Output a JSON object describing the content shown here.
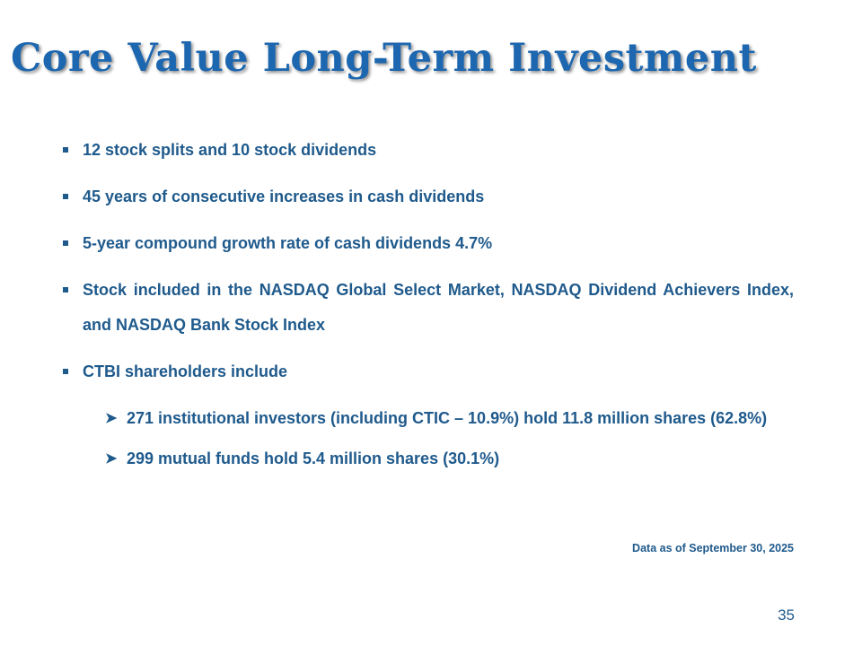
{
  "slide": {
    "title": "Core Value Long-Term Investment",
    "bullets": [
      "12 stock splits and 10 stock dividends",
      "45 years of consecutive increases in cash dividends",
      "5-year compound growth rate of cash dividends 4.7%",
      "Stock included in the NASDAQ Global Select Market, NASDAQ Dividend Achievers Index, and NASDAQ Bank Stock Index",
      "CTBI shareholders include"
    ],
    "sub_bullets": [
      "271 institutional investors (including CTIC – 10.9%) hold 11.8 million shares (62.8%)",
      "299 mutual funds hold 5.4 million shares (30.1%)"
    ],
    "footnote": "Data as of September 30, 2025",
    "page_number": "35"
  },
  "icons": {
    "bullet_marker": "square-bullet-icon",
    "sub_bullet_marker": "arrowhead-bullet-icon"
  }
}
